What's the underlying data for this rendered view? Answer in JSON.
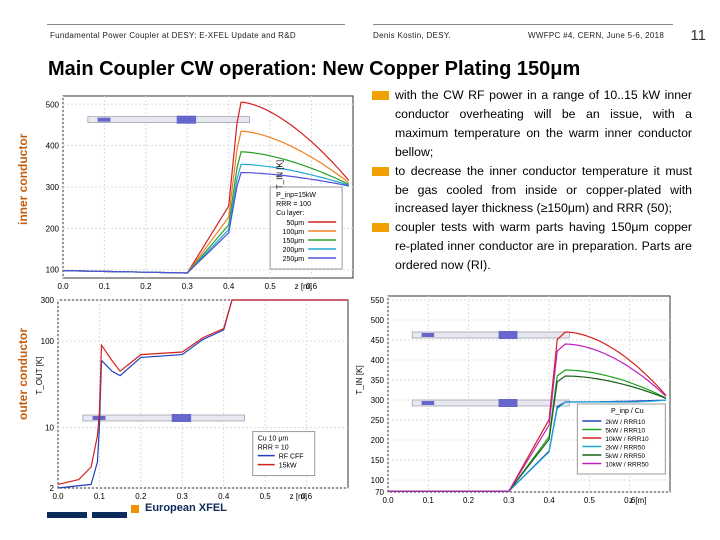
{
  "header": {
    "left": "Fundamental Power Coupler at DESY: E-XFEL Update and R&D",
    "center": "Denis Kostin, DESY.",
    "right": "WWFPC #4, CERN, June 5-6, 2018",
    "page_number": "11"
  },
  "title": "Main Coupler CW operation: New Copper Plating 150μm",
  "side_labels": {
    "inner": "inner conductor",
    "outer": "outer conductor"
  },
  "bullets": [
    "with the CW RF power in a range of 10..15 kW inner conductor overheating will be an issue, with a maximum temperature on the warm inner conductor bellow;",
    "to decrease the inner conductor temperature it must be gas cooled from inside or copper-plated with increased layer thickness (≥150μm) and RRR (50);",
    "coupler tests with warm parts having 150μm copper re-plated inner conductor are in preparation. Parts are ordered now (RI)."
  ],
  "footer": {
    "logo_text": "European XFEL"
  },
  "chart_data": [
    {
      "type": "line",
      "id": "inner-conductor-chart",
      "ylabel": "T_IN [K]",
      "xlabel": "z [m]",
      "xlim": [
        0,
        0.7
      ],
      "ylim": [
        80,
        520
      ],
      "xticks": [
        "0.0",
        "0.1",
        "0.2",
        "0.3",
        "0.4",
        "0.5",
        "0.6"
      ],
      "yticks": [
        "100",
        "200",
        "300",
        "400",
        "500"
      ],
      "legend": [
        "P_inp=15kW",
        "RRR = 100",
        "Cu layer:"
      ],
      "series": [
        {
          "name": "50μm",
          "color": "#d42020",
          "peak": 505
        },
        {
          "name": "100μm",
          "color": "#f08020",
          "peak": 435
        },
        {
          "name": "150μm",
          "color": "#28a028",
          "peak": 385
        },
        {
          "name": "200μm",
          "color": "#20a8d0",
          "peak": 355
        },
        {
          "name": "250μm",
          "color": "#5050d8",
          "peak": 335
        }
      ]
    },
    {
      "type": "line",
      "id": "outer-conductor-chart",
      "ylabel": "T_OUT [K]",
      "xlabel": "z [m]",
      "xlim": [
        0,
        0.7
      ],
      "ylim": [
        2,
        300
      ],
      "yscale": "log",
      "xticks": [
        "0.0",
        "0.1",
        "0.2",
        "0.3",
        "0.4",
        "0.5",
        "0.6"
      ],
      "yticks": [
        "2",
        "10",
        "100",
        "300"
      ],
      "legend": [
        "Cu 10 μm",
        "RRR = 10"
      ],
      "series": [
        {
          "name": "RF CFF",
          "color": "#2040c0"
        },
        {
          "name": "15kW",
          "color": "#d42020"
        }
      ]
    },
    {
      "type": "line",
      "id": "inner-rrr-chart",
      "ylabel": "T_IN [K]",
      "xlabel": "z [m]",
      "xlim": [
        0,
        0.7
      ],
      "ylim": [
        70,
        560
      ],
      "xticks": [
        "0.0",
        "0.1",
        "0.2",
        "0.3",
        "0.4",
        "0.5",
        "0.6"
      ],
      "yticks": [
        "70",
        "100",
        "150",
        "200",
        "250",
        "300",
        "350",
        "400",
        "450",
        "500",
        "550"
      ],
      "legend_title": "P_inp / Cu",
      "series": [
        {
          "name": "2kW / RRR10",
          "color": "#2040c0",
          "peak": 295
        },
        {
          "name": "5kW / RRR10",
          "color": "#20a020",
          "peak": 375
        },
        {
          "name": "10kW / RRR10",
          "color": "#d42020",
          "peak": 470
        },
        {
          "name": "2kW / RRR50",
          "color": "#20a8d0",
          "peak": 290
        },
        {
          "name": "5kW / RRR50",
          "color": "#186018",
          "peak": 360
        },
        {
          "name": "10kW / RRR50",
          "color": "#c020c0",
          "peak": 440
        }
      ]
    }
  ]
}
